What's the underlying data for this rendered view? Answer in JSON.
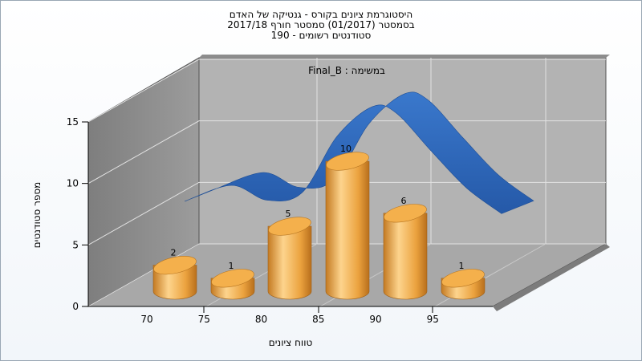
{
  "chart_data": {
    "type": "bar",
    "title_lines": [
      "היסטוגרמת ציונים בקורס - גנטיקה של האדם",
      "בסמסטר  (01/2017)  סמסטר חורף 2017/18",
      "190 - סטודנטים רשומים"
    ],
    "annotation": "Final_B : במשימה",
    "xlabel": "טווח ציונים",
    "ylabel": "מספר סטודנטים",
    "x_ticks": [
      "70",
      "75",
      "80",
      "85",
      "90",
      "95"
    ],
    "y_ticks": [
      "0",
      "5",
      "10",
      "15"
    ],
    "ylim": [
      0,
      15
    ],
    "grid": true,
    "categories": [
      "70",
      "75",
      "80",
      "85",
      "90",
      "95"
    ],
    "values": [
      2,
      1,
      5,
      10,
      6,
      1
    ],
    "curve": [
      {
        "x": 70,
        "y": 4.5
      },
      {
        "x": 74,
        "y": 5.8
      },
      {
        "x": 77,
        "y": 4.6
      },
      {
        "x": 80,
        "y": 5.2
      },
      {
        "x": 83,
        "y": 9.8
      },
      {
        "x": 86,
        "y": 12.2
      },
      {
        "x": 88,
        "y": 11.7
      },
      {
        "x": 91,
        "y": 8.6
      },
      {
        "x": 94,
        "y": 5.6
      },
      {
        "x": 97,
        "y": 3.5
      }
    ],
    "colors": {
      "bar": "#f0a540",
      "bar_light": "#fcd48a",
      "bar_dark": "#c07820",
      "curve": "#2f6bbf",
      "back_wall": "#b4b4b4",
      "side_wall": "#8a8a8a",
      "floor": "#a9a9a9"
    }
  }
}
